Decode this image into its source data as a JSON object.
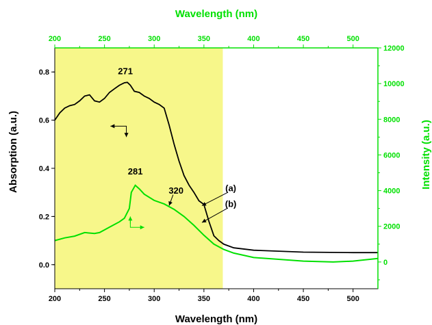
{
  "chart_data": {
    "type": "line",
    "colors": {
      "absorption": "#000000",
      "intensity": "#00e000",
      "highlight": "#f7f78a",
      "frame": "#000000",
      "secondary_axis": "#00e000"
    },
    "axes": {
      "x_bottom": {
        "label": "Wavelength (nm)",
        "range": [
          200,
          525
        ],
        "ticks": [
          "200",
          "250",
          "300",
          "350",
          "400",
          "450",
          "500"
        ]
      },
      "x_top": {
        "label": "Wavelength (nm)",
        "range": [
          200,
          525
        ],
        "ticks": [
          "200",
          "250",
          "300",
          "350",
          "400",
          "450",
          "500"
        ]
      },
      "y_left": {
        "label": "Absorption (a.u.)",
        "range": [
          -0.1,
          0.9
        ],
        "ticks": [
          "0.0",
          "0.2",
          "0.4",
          "0.6",
          "0.8"
        ]
      },
      "y_right": {
        "label": "Intensity (a.u.)",
        "range": [
          -1500,
          12000
        ],
        "ticks": [
          "0",
          "2000",
          "4000",
          "6000",
          "8000",
          "10000",
          "12000"
        ]
      }
    },
    "shaded_region": {
      "x": [
        200,
        369
      ]
    },
    "series": [
      {
        "axis": "left",
        "points": [
          [
            200,
            0.6
          ],
          [
            205,
            0.63
          ],
          [
            210,
            0.65
          ],
          [
            215,
            0.66
          ],
          [
            220,
            0.665
          ],
          [
            225,
            0.68
          ],
          [
            230,
            0.7
          ],
          [
            235,
            0.705
          ],
          [
            240,
            0.68
          ],
          [
            245,
            0.675
          ],
          [
            250,
            0.69
          ],
          [
            255,
            0.715
          ],
          [
            260,
            0.73
          ],
          [
            265,
            0.745
          ],
          [
            270,
            0.755
          ],
          [
            273,
            0.757
          ],
          [
            276,
            0.745
          ],
          [
            280,
            0.72
          ],
          [
            285,
            0.715
          ],
          [
            290,
            0.7
          ],
          [
            295,
            0.69
          ],
          [
            300,
            0.675
          ],
          [
            305,
            0.665
          ],
          [
            310,
            0.65
          ],
          [
            315,
            0.58
          ],
          [
            320,
            0.5
          ],
          [
            325,
            0.43
          ],
          [
            330,
            0.37
          ],
          [
            335,
            0.33
          ],
          [
            340,
            0.3
          ],
          [
            345,
            0.265
          ],
          [
            350,
            0.25
          ],
          [
            355,
            0.18
          ],
          [
            360,
            0.12
          ],
          [
            365,
            0.1
          ],
          [
            370,
            0.085
          ],
          [
            380,
            0.07
          ],
          [
            400,
            0.06
          ],
          [
            450,
            0.052
          ],
          [
            500,
            0.05
          ],
          [
            525,
            0.05
          ]
        ]
      },
      {
        "axis": "right",
        "points": [
          [
            200,
            1200
          ],
          [
            210,
            1350
          ],
          [
            220,
            1450
          ],
          [
            230,
            1650
          ],
          [
            240,
            1600
          ],
          [
            245,
            1650
          ],
          [
            250,
            1800
          ],
          [
            255,
            1950
          ],
          [
            260,
            2100
          ],
          [
            265,
            2250
          ],
          [
            270,
            2450
          ],
          [
            275,
            3000
          ],
          [
            277,
            3900
          ],
          [
            281,
            4300
          ],
          [
            285,
            4100
          ],
          [
            290,
            3800
          ],
          [
            300,
            3450
          ],
          [
            310,
            3250
          ],
          [
            320,
            2950
          ],
          [
            330,
            2550
          ],
          [
            340,
            2050
          ],
          [
            350,
            1500
          ],
          [
            360,
            1000
          ],
          [
            370,
            700
          ],
          [
            380,
            500
          ],
          [
            400,
            250
          ],
          [
            450,
            50
          ],
          [
            480,
            0
          ],
          [
            500,
            50
          ],
          [
            525,
            200
          ]
        ]
      }
    ],
    "annotations": [
      {
        "text": "271",
        "x": 271,
        "y": 0.79,
        "axis": "left"
      },
      {
        "text": "281",
        "x": 281,
        "y": 0.375,
        "axis": "left"
      },
      {
        "text": "320",
        "x": 322,
        "y": 0.295,
        "axis": "left"
      },
      {
        "text": "(a)",
        "x": 377,
        "y": 0.305,
        "axis": "left"
      },
      {
        "text": "(b)",
        "x": 377,
        "y": 0.24,
        "axis": "left"
      }
    ],
    "arrows": [
      {
        "from": [
          374,
          0.3
        ],
        "to": [
          348,
          0.245
        ],
        "axis": "left"
      },
      {
        "from": [
          374,
          0.235
        ],
        "to": [
          348,
          0.175
        ],
        "axis": "left"
      },
      {
        "from": [
          319,
          0.29
        ],
        "to": [
          315,
          0.245
        ],
        "axis": "left"
      }
    ]
  }
}
